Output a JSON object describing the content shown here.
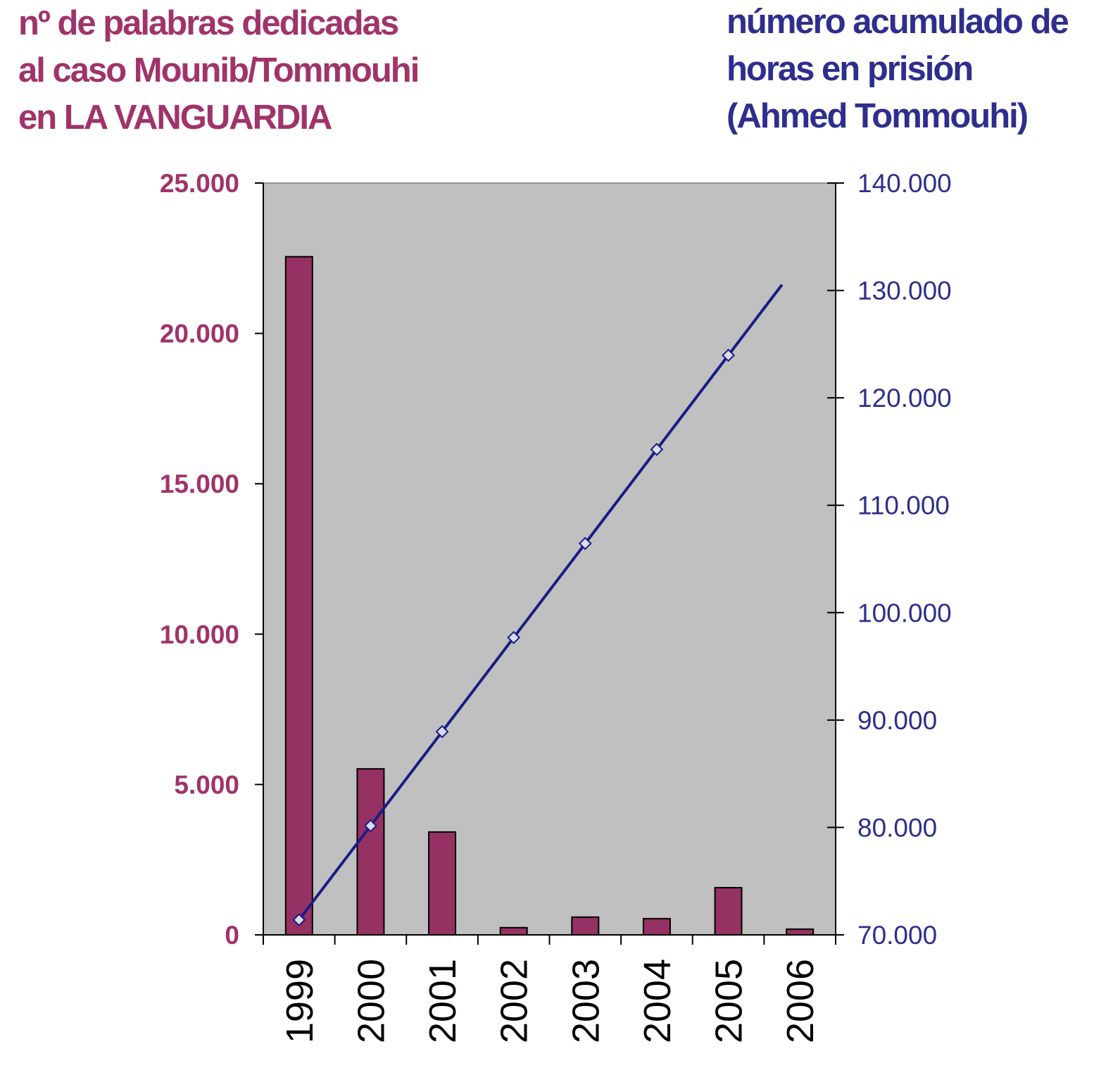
{
  "chart_data": {
    "type": "bar+line",
    "categories": [
      "1999",
      "2000",
      "2001",
      "2002",
      "2003",
      "2004",
      "2005",
      "2006"
    ],
    "series": [
      {
        "name": "nº de palabras dedicadas al caso Mounib/Tommouhi en LA VANGUARDIA",
        "type": "bar",
        "axis": "left",
        "color": "#953163",
        "values": [
          22550,
          5520,
          3420,
          240,
          590,
          540,
          1570,
          190
        ]
      },
      {
        "name": "número acumulado de horas en prisión (Ahmed Tommouhi)",
        "type": "line",
        "axis": "right",
        "color": "#1C1C84",
        "values": [
          71400,
          80160,
          88920,
          97680,
          106440,
          115200,
          123960,
          null
        ],
        "line_end": {
          "x_year": 2005.75,
          "value": 130530
        }
      }
    ],
    "title_left": [
      "nº de palabras dedicadas",
      "al caso Mounib/Tommouhi",
      "en LA VANGUARDIA"
    ],
    "title_right": [
      "número acumulado de",
      "horas en prisión",
      "(Ahmed Tommouhi)"
    ],
    "y_left": {
      "ylim": [
        0,
        25000
      ],
      "ticks": [
        0,
        5000,
        10000,
        15000,
        20000,
        25000
      ],
      "tick_labels": [
        "0",
        "5.000",
        "10.000",
        "15.000",
        "20.000",
        "25.000"
      ]
    },
    "y_right": {
      "ylim": [
        70000,
        140000
      ],
      "ticks": [
        70000,
        80000,
        90000,
        100000,
        110000,
        120000,
        130000,
        140000
      ],
      "tick_labels": [
        "70.000",
        "80.000",
        "90.000",
        "100.000",
        "110.000",
        "120.000",
        "130.000",
        "140.000"
      ]
    },
    "xlabel": "",
    "grid": false,
    "plot_background": "#C0C0C0"
  }
}
